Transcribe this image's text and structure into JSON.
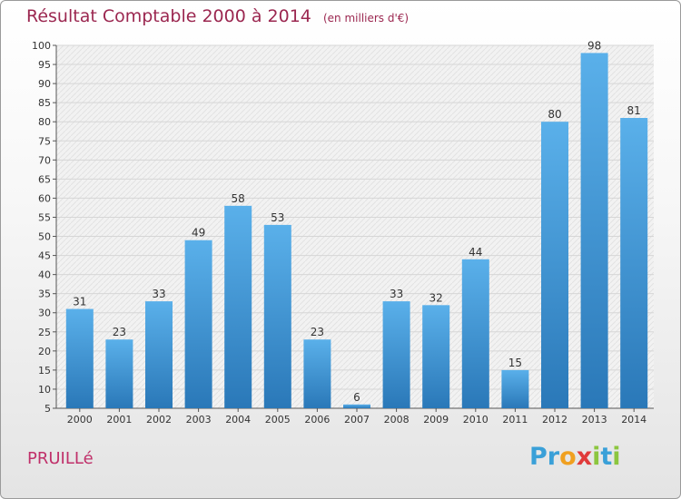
{
  "header": {
    "title": "Résultat Comptable 2000 à 2014",
    "unit": "(en milliers d'€)"
  },
  "footer": {
    "commune": "PRUILLé",
    "logo": [
      {
        "ch": "P",
        "color": "#3aa0d8"
      },
      {
        "ch": "r",
        "color": "#3aa0d8"
      },
      {
        "ch": "o",
        "color": "#f0a020"
      },
      {
        "ch": "x",
        "color": "#e03a3a"
      },
      {
        "ch": "i",
        "color": "#8cc63f"
      },
      {
        "ch": "t",
        "color": "#3aa0d8"
      },
      {
        "ch": "i",
        "color": "#8cc63f"
      }
    ]
  },
  "colors": {
    "bar_top": "#5ab0ea",
    "bar_bottom": "#2a78b8",
    "title": "#9b2750",
    "commune": "#c0306a"
  },
  "chart_data": {
    "type": "bar",
    "title": "Résultat Comptable 2000 à 2014",
    "subtitle": "(en milliers d'€)",
    "categories": [
      "2000",
      "2001",
      "2002",
      "2003",
      "2004",
      "2005",
      "2006",
      "2007",
      "2008",
      "2009",
      "2010",
      "2011",
      "2012",
      "2013",
      "2014"
    ],
    "values": [
      31,
      23,
      33,
      49,
      58,
      53,
      23,
      6,
      33,
      32,
      44,
      15,
      80,
      98,
      81
    ],
    "ylim": [
      5,
      100
    ],
    "yticks": [
      5,
      10,
      15,
      20,
      25,
      30,
      35,
      40,
      45,
      50,
      55,
      60,
      65,
      70,
      75,
      80,
      85,
      90,
      95,
      100
    ],
    "grid": true,
    "legend": "none"
  }
}
